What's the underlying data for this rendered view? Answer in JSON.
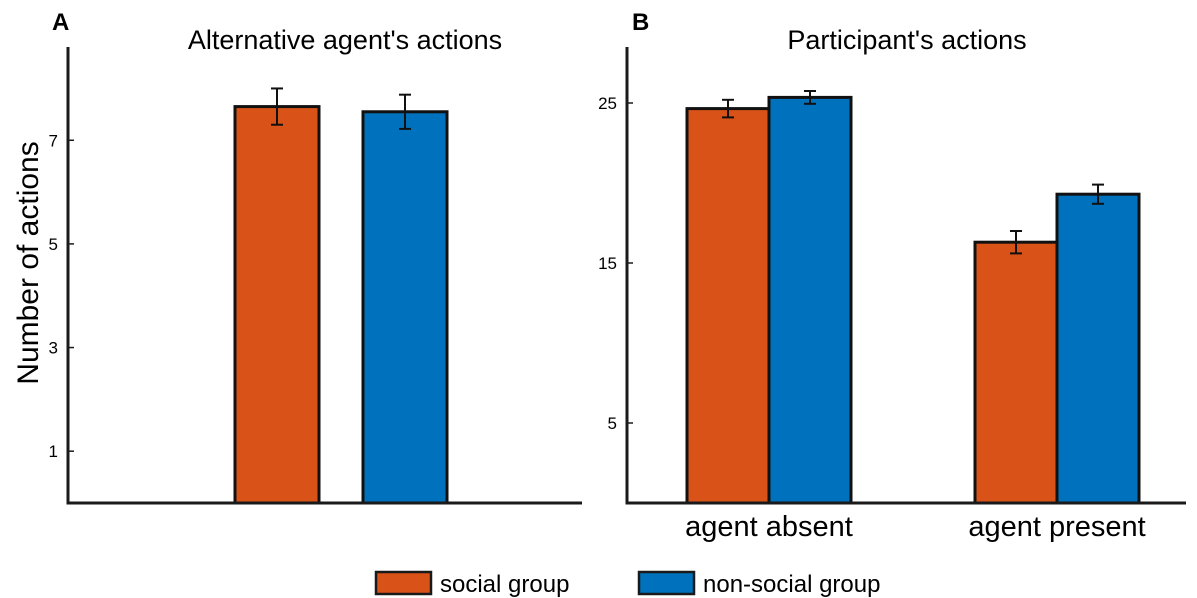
{
  "colors": {
    "social": "#D95319",
    "non_social": "#0072BD",
    "axis": "#1a1a1a"
  },
  "legend": {
    "social_label": "social group",
    "non_social_label": "non-social group"
  },
  "chart_data": [
    {
      "type": "bar",
      "panel": "A",
      "title": "Alternative agent's actions",
      "ylabel": "Number of actions",
      "xlabel": "",
      "ylim": [
        0,
        8.8
      ],
      "yticks": [
        1,
        3,
        5,
        7
      ],
      "categories": [
        ""
      ],
      "series": [
        {
          "name": "social group",
          "values": [
            7.65
          ],
          "errors": [
            0.35
          ]
        },
        {
          "name": "non-social group",
          "values": [
            7.55
          ],
          "errors": [
            0.33
          ]
        }
      ],
      "grid": false,
      "legend_position": "bottom"
    },
    {
      "type": "bar",
      "panel": "B",
      "title": "Participant's actions",
      "ylabel": "",
      "xlabel": "",
      "ylim": [
        0,
        28.5
      ],
      "yticks": [
        5,
        15,
        25
      ],
      "categories": [
        "agent absent",
        "agent present"
      ],
      "series": [
        {
          "name": "social group",
          "values": [
            24.65,
            16.3
          ],
          "errors": [
            0.55,
            0.7
          ]
        },
        {
          "name": "non-social group",
          "values": [
            25.35,
            19.3
          ],
          "errors": [
            0.4,
            0.6
          ]
        }
      ],
      "grid": false,
      "legend_position": "bottom"
    }
  ]
}
